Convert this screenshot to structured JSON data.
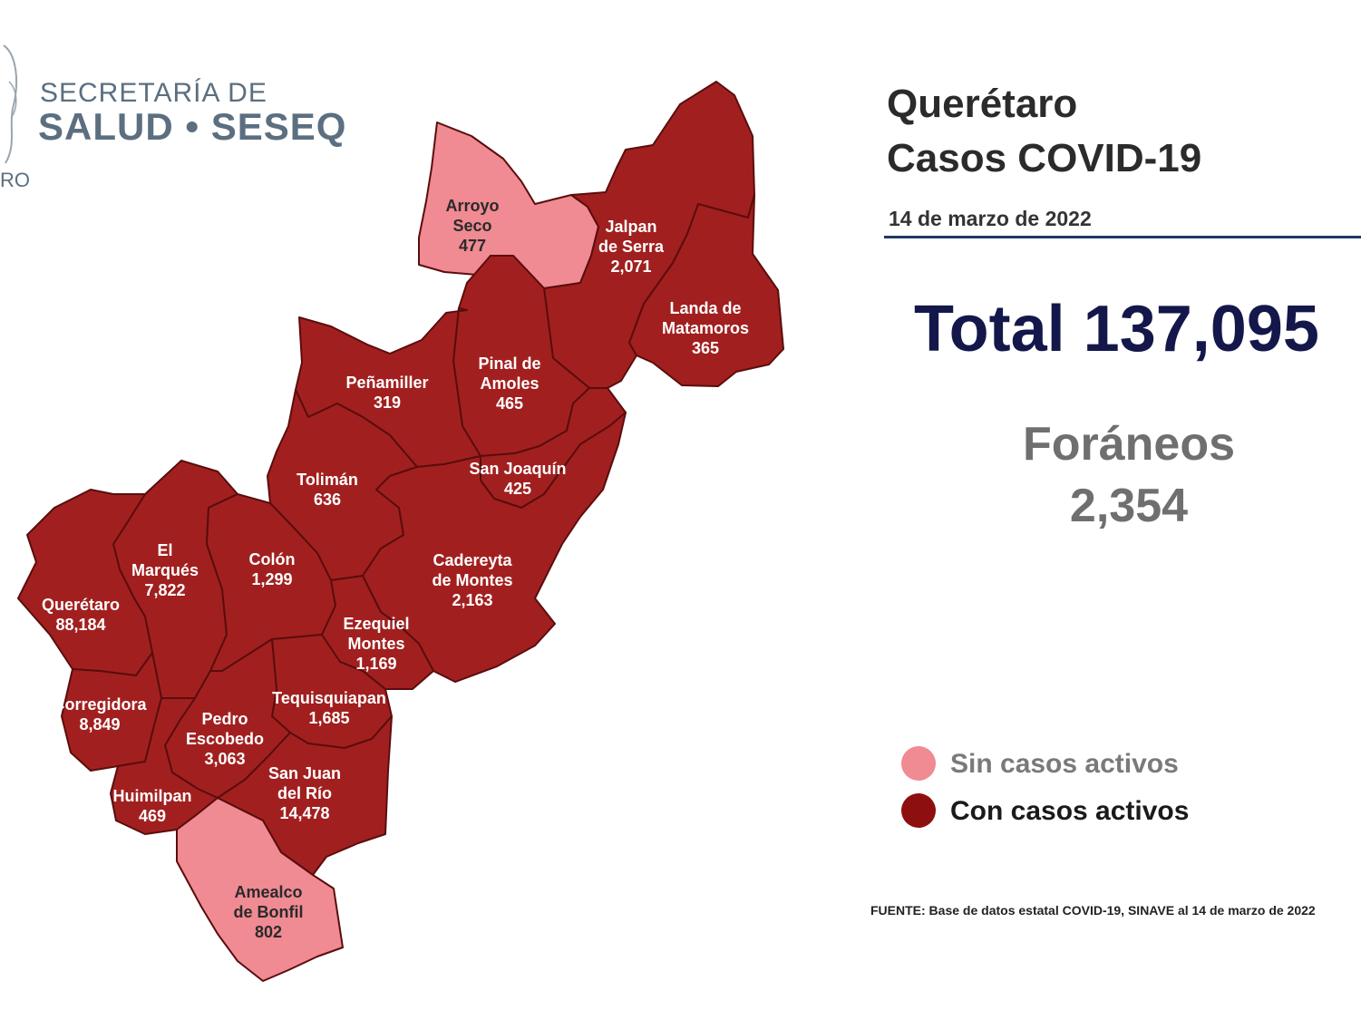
{
  "header": {
    "logo_line1": "SECRETARÍA DE",
    "logo_line2": "SALUD • SESEQ",
    "logo_fragment": "RO"
  },
  "title": {
    "line1": "Querétaro",
    "line2": "Casos COVID-19",
    "date": "14 de marzo de 2022"
  },
  "total": "Total 137,095",
  "foraneos": {
    "label": "Foráneos",
    "value": "2,354"
  },
  "legend": {
    "sin": {
      "label": "Sin casos activos",
      "color": "#f08a93"
    },
    "con": {
      "label": "Con casos activos",
      "color": "#8e0f0f"
    }
  },
  "source": "FUENTE: Base de datos estatal COVID-19, SINAVE al 14 de marzo de 2022",
  "colors": {
    "active": "#a1201f",
    "inactive": "#f08a93",
    "border": "#5a0d0d"
  },
  "municipalities": [
    {
      "id": "arroyo-seco",
      "lines": [
        "Arroyo",
        "Seco",
        "477"
      ],
      "status": "sin"
    },
    {
      "id": "jalpan-de-serra",
      "lines": [
        "Jalpan",
        "de Serra",
        "2,071"
      ],
      "status": "con"
    },
    {
      "id": "landa-de-matamoros",
      "lines": [
        "Landa de",
        "Matamoros",
        "365"
      ],
      "status": "con"
    },
    {
      "id": "pinal-de-amoles",
      "lines": [
        "Pinal de",
        "Amoles",
        "465"
      ],
      "status": "con"
    },
    {
      "id": "penamiller",
      "lines": [
        "Peñamiller",
        "319"
      ],
      "status": "con"
    },
    {
      "id": "san-joaquin",
      "lines": [
        "San Joaquín",
        "425"
      ],
      "status": "con"
    },
    {
      "id": "toliman",
      "lines": [
        "Tolimán",
        "636"
      ],
      "status": "con"
    },
    {
      "id": "cadereyta-de-montes",
      "lines": [
        "Cadereyta",
        "de Montes",
        "2,163"
      ],
      "status": "con"
    },
    {
      "id": "el-marques",
      "lines": [
        "El",
        "Marqués",
        "7,822"
      ],
      "status": "con"
    },
    {
      "id": "colon",
      "lines": [
        "Colón",
        "1,299"
      ],
      "status": "con"
    },
    {
      "id": "queretaro",
      "lines": [
        "Querétaro",
        "88,184"
      ],
      "status": "con"
    },
    {
      "id": "ezequiel-montes",
      "lines": [
        "Ezequiel",
        "Montes",
        "1,169"
      ],
      "status": "con"
    },
    {
      "id": "corregidora",
      "lines": [
        "Corregidora",
        "8,849"
      ],
      "status": "con"
    },
    {
      "id": "tequisquiapan",
      "lines": [
        "Tequisquiapan",
        "1,685"
      ],
      "status": "con"
    },
    {
      "id": "pedro-escobedo",
      "lines": [
        "Pedro",
        "Escobedo",
        "3,063"
      ],
      "status": "con"
    },
    {
      "id": "san-juan-del-rio",
      "lines": [
        "San Juan",
        "del Río",
        "14,478"
      ],
      "status": "con"
    },
    {
      "id": "huimilpan",
      "lines": [
        "Huimilpan",
        "469"
      ],
      "status": "con"
    },
    {
      "id": "amealco-de-bonfil",
      "lines": [
        "Amealco",
        "de Bonfil",
        "802"
      ],
      "status": "sin"
    }
  ]
}
